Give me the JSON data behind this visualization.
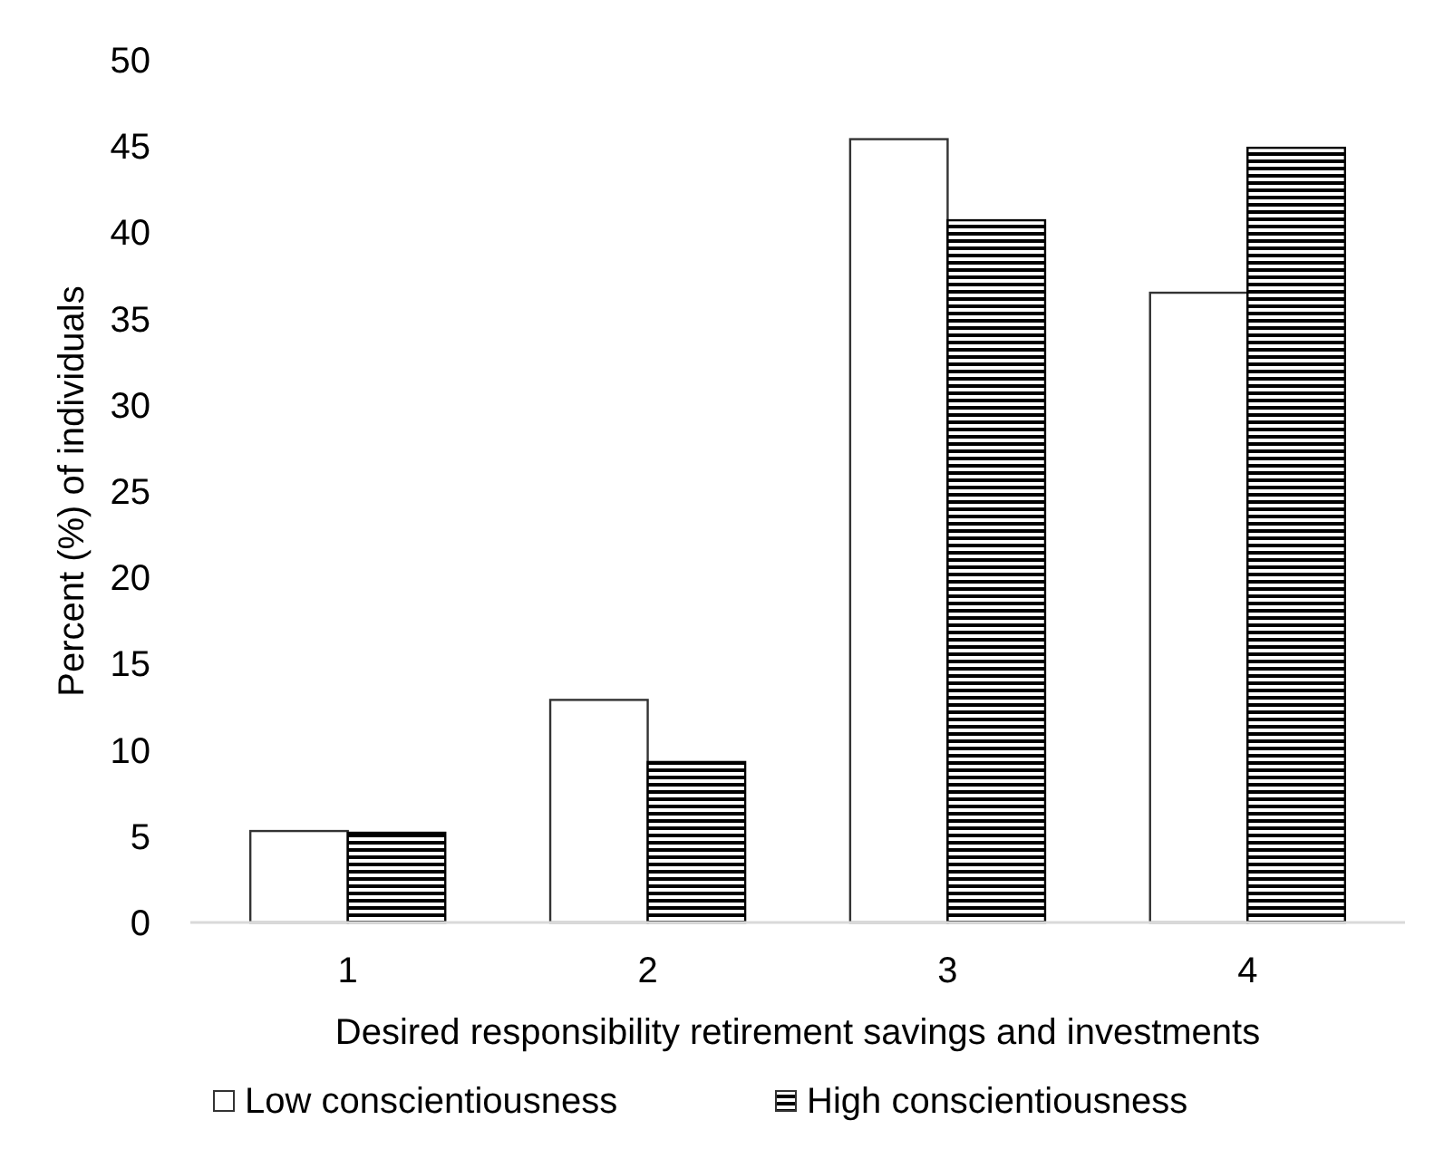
{
  "chart_data": {
    "type": "bar",
    "xlabel": "Desired responsibility retirement savings and investments",
    "ylabel": "Percent (%) of individuals",
    "categories": [
      "1",
      "2",
      "3",
      "4"
    ],
    "series": [
      {
        "name": "Low conscientiousness",
        "color": "#ffffff",
        "values": [
          5.3,
          12.9,
          45.4,
          36.5
        ]
      },
      {
        "name": "High conscientiousness",
        "color": "#000000",
        "values": [
          5.2,
          9.3,
          40.7,
          44.9
        ]
      }
    ],
    "ylim": [
      0,
      50
    ],
    "yticks": [
      0,
      5,
      10,
      15,
      20,
      25,
      30,
      35,
      40,
      45,
      50
    ],
    "grid": false,
    "legend": "bottom"
  }
}
